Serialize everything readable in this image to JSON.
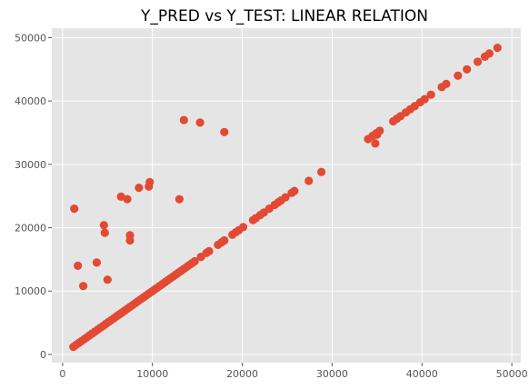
{
  "chart_data": {
    "type": "scatter",
    "title": "Y_PRED vs Y_TEST: LINEAR RELATION",
    "xlabel": "",
    "ylabel": "",
    "xlim": [
      -1200,
      51000
    ],
    "ylim": [
      -1300,
      51500
    ],
    "x_ticks": [
      0,
      10000,
      20000,
      30000,
      40000,
      50000
    ],
    "y_ticks": [
      0,
      10000,
      20000,
      30000,
      40000,
      50000
    ],
    "x_tick_labels": [
      "0",
      "10000",
      "20000",
      "30000",
      "40000",
      "50000"
    ],
    "y_tick_labels": [
      "0",
      "10000",
      "20000",
      "30000",
      "40000",
      "50000"
    ],
    "grid": true,
    "legend": "none",
    "style": {
      "point_color": "#E24A33",
      "panel_color": "#E5E5E5",
      "grid_color": "#FFFFFF",
      "tick_color": "#555555"
    },
    "series": [
      {
        "x": [
          1200,
          1500,
          1800,
          2100,
          2400,
          2700,
          3000,
          3300,
          3600,
          3900,
          4200,
          4500,
          4800,
          5100,
          5400,
          5700,
          6000,
          6300,
          6600,
          6900,
          7200,
          7500,
          7800,
          8100,
          8400,
          8700,
          9000,
          9300,
          9600,
          9900,
          10200,
          10500,
          10800,
          11100,
          11400,
          11700,
          12000,
          12300,
          12600,
          12900,
          13200,
          13500,
          13800,
          14100,
          14400,
          14700,
          15400,
          16000,
          16300,
          17300,
          17700,
          18000,
          18900,
          19300,
          19600,
          20100,
          21200,
          21500,
          22000,
          22400,
          23000,
          23600,
          24000,
          24300,
          24800,
          25500,
          25800,
          27400,
          28800,
          34000,
          34500,
          34900,
          35300,
          36800,
          37200,
          37600,
          38200,
          38700,
          39200,
          39800,
          40300,
          41000,
          42200,
          42700,
          44000,
          45000,
          46200,
          47000,
          47500,
          48400,
          1300,
          1700,
          2300,
          3800,
          4600,
          4700,
          5000,
          6500,
          7200,
          7500,
          7500,
          8500,
          9600,
          9700,
          13000,
          13500,
          15300,
          18000,
          34800,
          35000
        ],
        "y": [
          1200,
          1500,
          1800,
          2100,
          2400,
          2700,
          3000,
          3300,
          3600,
          3900,
          4200,
          4500,
          4800,
          5100,
          5400,
          5700,
          6000,
          6300,
          6600,
          6900,
          7200,
          7500,
          7800,
          8100,
          8400,
          8700,
          9000,
          9300,
          9600,
          9900,
          10200,
          10500,
          10800,
          11100,
          11400,
          11700,
          12000,
          12300,
          12600,
          12900,
          13200,
          13500,
          13800,
          14100,
          14400,
          14700,
          15400,
          16000,
          16300,
          17300,
          17700,
          18000,
          18900,
          19300,
          19600,
          20100,
          21200,
          21500,
          22000,
          22400,
          23000,
          23600,
          24000,
          24300,
          24800,
          25500,
          25800,
          27400,
          28800,
          34000,
          34500,
          34900,
          35300,
          36800,
          37200,
          37600,
          38200,
          38700,
          39200,
          39800,
          40300,
          41000,
          42200,
          42700,
          44000,
          45000,
          46200,
          47000,
          47500,
          48400,
          23000,
          14000,
          10800,
          14500,
          20400,
          19200,
          11800,
          24900,
          24500,
          18800,
          18000,
          26300,
          26500,
          27200,
          24500,
          37000,
          36600,
          35100,
          33300,
          34700
        ]
      }
    ]
  }
}
